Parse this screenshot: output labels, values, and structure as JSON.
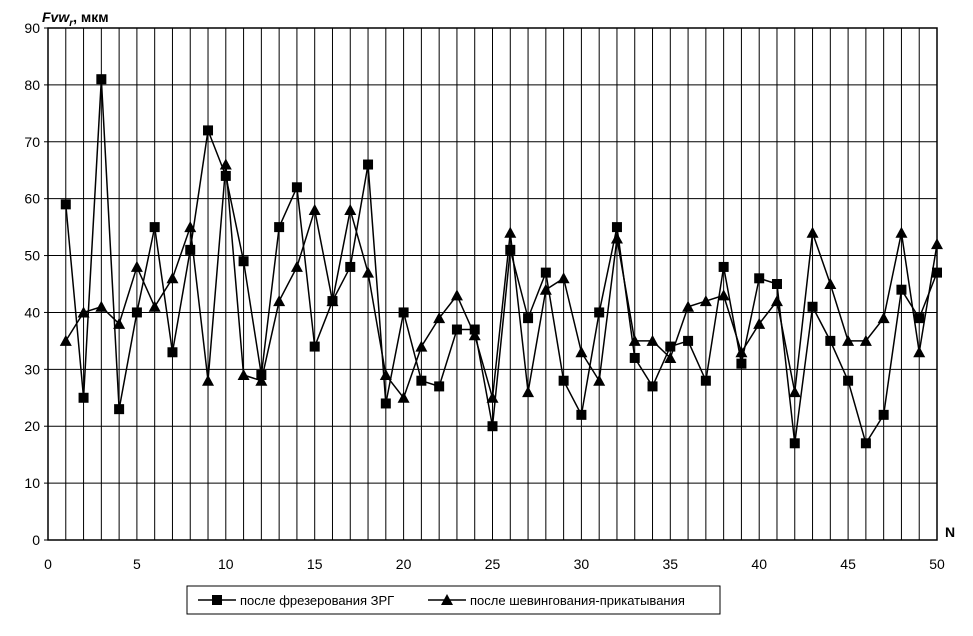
{
  "chart_data": {
    "type": "line",
    "ylabel_main": "Fvw",
    "ylabel_sub": "r",
    "ylabel_unit": ", мкм",
    "xlabel": "N",
    "xlim": [
      0,
      50
    ],
    "ylim": [
      0,
      90
    ],
    "x_ticks": [
      0,
      5,
      10,
      15,
      20,
      25,
      30,
      35,
      40,
      45,
      50
    ],
    "y_ticks": [
      0,
      10,
      20,
      30,
      40,
      50,
      60,
      70,
      80,
      90
    ],
    "grid": "vertical-every-unit, horizontal-every-10",
    "legend_position": "bottom",
    "x": [
      1,
      2,
      3,
      4,
      5,
      6,
      7,
      8,
      9,
      10,
      11,
      12,
      13,
      14,
      15,
      16,
      17,
      18,
      19,
      20,
      21,
      22,
      23,
      24,
      25,
      26,
      27,
      28,
      29,
      30,
      31,
      32,
      33,
      34,
      35,
      36,
      37,
      38,
      39,
      40,
      41,
      42,
      43,
      44,
      45,
      46,
      47,
      48,
      49,
      50
    ],
    "series": [
      {
        "name": "после фрезерования ЗРГ",
        "marker": "square",
        "values": [
          59,
          25,
          81,
          23,
          40,
          55,
          33,
          51,
          72,
          64,
          49,
          29,
          55,
          62,
          34,
          42,
          48,
          66,
          24,
          40,
          28,
          27,
          37,
          37,
          20,
          51,
          39,
          47,
          28,
          22,
          40,
          55,
          32,
          27,
          34,
          35,
          28,
          48,
          31,
          46,
          45,
          17,
          41,
          35,
          28,
          17,
          22,
          44,
          39,
          47
        ]
      },
      {
        "name": "после шевингования-прикатывания",
        "marker": "triangle",
        "values": [
          35,
          40,
          41,
          38,
          48,
          41,
          46,
          55,
          28,
          66,
          29,
          28,
          42,
          48,
          58,
          42,
          58,
          47,
          29,
          25,
          34,
          39,
          43,
          36,
          25,
          54,
          26,
          44,
          46,
          33,
          28,
          53,
          35,
          35,
          32,
          41,
          42,
          43,
          33,
          38,
          42,
          26,
          54,
          45,
          35,
          35,
          39,
          54,
          33,
          52
        ]
      }
    ]
  }
}
